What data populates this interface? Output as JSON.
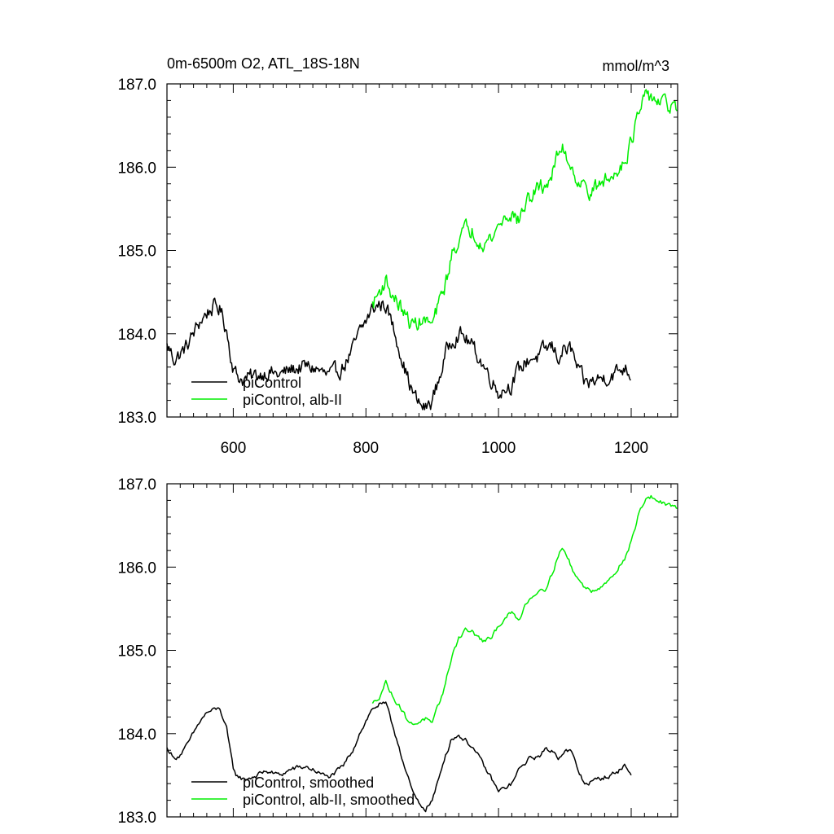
{
  "chart_data": [
    {
      "type": "line",
      "header_left": "0m-6500m O2, ATL_18S-18N",
      "header_right": "mmol/m^3",
      "xlabel": "",
      "ylabel": "",
      "xlim": [
        500,
        1270
      ],
      "ylim": [
        183.0,
        187.0
      ],
      "xticks": [
        600,
        800,
        1000,
        1200
      ],
      "yticks": [
        183.0,
        184.0,
        185.0,
        186.0,
        187.0
      ],
      "yticklabels": [
        "183.0",
        "184.0",
        "185.0",
        "186.0",
        "187.0"
      ],
      "show_xticklabels": true,
      "legend_position": "bottom-left",
      "grid": false,
      "series": [
        {
          "name": "piControl",
          "color": "#000000",
          "noise": 0.08,
          "points": [
            [
              500,
              183.85
            ],
            [
              505,
              183.8
            ],
            [
              510,
              183.7
            ],
            [
              520,
              183.75
            ],
            [
              530,
              183.85
            ],
            [
              540,
              184.0
            ],
            [
              550,
              184.15
            ],
            [
              560,
              184.25
            ],
            [
              570,
              184.32
            ],
            [
              580,
              184.3
            ],
            [
              590,
              184.05
            ],
            [
              595,
              183.8
            ],
            [
              600,
              183.6
            ],
            [
              605,
              183.5
            ],
            [
              615,
              183.45
            ],
            [
              630,
              183.48
            ],
            [
              650,
              183.55
            ],
            [
              670,
              183.5
            ],
            [
              690,
              183.58
            ],
            [
              710,
              183.6
            ],
            [
              725,
              183.58
            ],
            [
              740,
              183.5
            ],
            [
              750,
              183.5
            ],
            [
              765,
              183.6
            ],
            [
              780,
              183.8
            ],
            [
              790,
              184.0
            ],
            [
              800,
              184.15
            ],
            [
              810,
              184.3
            ],
            [
              820,
              184.35
            ],
            [
              830,
              184.35
            ],
            [
              840,
              184.1
            ],
            [
              850,
              183.85
            ],
            [
              860,
              183.55
            ],
            [
              870,
              183.3
            ],
            [
              880,
              183.15
            ],
            [
              890,
              183.1
            ],
            [
              900,
              183.2
            ],
            [
              910,
              183.45
            ],
            [
              920,
              183.75
            ],
            [
              930,
              183.95
            ],
            [
              940,
              184.0
            ],
            [
              950,
              183.95
            ],
            [
              960,
              183.85
            ],
            [
              970,
              183.72
            ],
            [
              980,
              183.58
            ],
            [
              990,
              183.45
            ],
            [
              1000,
              183.3
            ],
            [
              1010,
              183.35
            ],
            [
              1020,
              183.4
            ],
            [
              1030,
              183.55
            ],
            [
              1040,
              183.65
            ],
            [
              1050,
              183.72
            ],
            [
              1060,
              183.72
            ],
            [
              1070,
              183.8
            ],
            [
              1080,
              183.85
            ],
            [
              1090,
              183.72
            ],
            [
              1100,
              183.82
            ],
            [
              1110,
              183.8
            ],
            [
              1120,
              183.55
            ],
            [
              1130,
              183.4
            ],
            [
              1140,
              183.42
            ],
            [
              1150,
              183.45
            ],
            [
              1160,
              183.48
            ],
            [
              1170,
              183.5
            ],
            [
              1180,
              183.55
            ],
            [
              1190,
              183.6
            ],
            [
              1200,
              183.52
            ]
          ]
        },
        {
          "name": "piControl, alb-II",
          "color": "#00ee00",
          "noise": 0.08,
          "points": [
            [
              810,
              184.35
            ],
            [
              820,
              184.5
            ],
            [
              830,
              184.65
            ],
            [
              840,
              184.45
            ],
            [
              850,
              184.35
            ],
            [
              860,
              184.2
            ],
            [
              870,
              184.1
            ],
            [
              880,
              184.15
            ],
            [
              890,
              184.15
            ],
            [
              900,
              184.1
            ],
            [
              910,
              184.35
            ],
            [
              920,
              184.6
            ],
            [
              930,
              184.95
            ],
            [
              940,
              185.15
            ],
            [
              950,
              185.25
            ],
            [
              960,
              185.25
            ],
            [
              970,
              185.15
            ],
            [
              980,
              185.1
            ],
            [
              990,
              185.15
            ],
            [
              1000,
              185.3
            ],
            [
              1010,
              185.4
            ],
            [
              1020,
              185.45
            ],
            [
              1030,
              185.35
            ],
            [
              1040,
              185.55
            ],
            [
              1050,
              185.65
            ],
            [
              1060,
              185.75
            ],
            [
              1070,
              185.78
            ],
            [
              1080,
              185.9
            ],
            [
              1090,
              186.15
            ],
            [
              1095,
              186.25
            ],
            [
              1100,
              186.2
            ],
            [
              1110,
              186.0
            ],
            [
              1120,
              185.85
            ],
            [
              1130,
              185.75
            ],
            [
              1140,
              185.72
            ],
            [
              1150,
              185.75
            ],
            [
              1160,
              185.85
            ],
            [
              1170,
              185.85
            ],
            [
              1180,
              186.0
            ],
            [
              1190,
              186.1
            ],
            [
              1200,
              186.3
            ],
            [
              1210,
              186.6
            ],
            [
              1220,
              186.8
            ],
            [
              1230,
              186.85
            ],
            [
              1240,
              186.8
            ],
            [
              1250,
              186.75
            ],
            [
              1260,
              186.72
            ],
            [
              1270,
              186.7
            ]
          ]
        }
      ]
    },
    {
      "type": "line",
      "header_left": "",
      "header_right": "",
      "xlabel": "",
      "ylabel": "",
      "xlim": [
        500,
        1270
      ],
      "ylim": [
        183.0,
        187.0
      ],
      "xticks": [
        600,
        800,
        1000,
        1200
      ],
      "yticks": [
        183.0,
        184.0,
        185.0,
        186.0,
        187.0
      ],
      "yticklabels": [
        "183.0",
        "184.0",
        "185.0",
        "186.0",
        "187.0"
      ],
      "show_xticklabels": false,
      "legend_position": "bottom-left",
      "grid": false,
      "series": [
        {
          "name": "piControl, smoothed",
          "color": "#000000",
          "noise": 0.025,
          "points": [
            [
              500,
              183.82
            ],
            [
              505,
              183.78
            ],
            [
              510,
              183.7
            ],
            [
              520,
              183.75
            ],
            [
              530,
              183.85
            ],
            [
              540,
              184.0
            ],
            [
              550,
              184.15
            ],
            [
              560,
              184.25
            ],
            [
              570,
              184.28
            ],
            [
              580,
              184.3
            ],
            [
              590,
              184.05
            ],
            [
              595,
              183.8
            ],
            [
              600,
              183.58
            ],
            [
              605,
              183.5
            ],
            [
              615,
              183.45
            ],
            [
              630,
              183.48
            ],
            [
              650,
              183.55
            ],
            [
              670,
              183.5
            ],
            [
              690,
              183.58
            ],
            [
              710,
              183.6
            ],
            [
              725,
              183.55
            ],
            [
              740,
              183.48
            ],
            [
              750,
              183.5
            ],
            [
              765,
              183.6
            ],
            [
              780,
              183.8
            ],
            [
              790,
              184.0
            ],
            [
              800,
              184.15
            ],
            [
              810,
              184.3
            ],
            [
              820,
              184.35
            ],
            [
              830,
              184.35
            ],
            [
              840,
              184.1
            ],
            [
              850,
              183.85
            ],
            [
              860,
              183.55
            ],
            [
              870,
              183.3
            ],
            [
              880,
              183.15
            ],
            [
              890,
              183.1
            ],
            [
              900,
              183.2
            ],
            [
              910,
              183.45
            ],
            [
              920,
              183.75
            ],
            [
              930,
              183.95
            ],
            [
              940,
              183.98
            ],
            [
              950,
              183.92
            ],
            [
              960,
              183.85
            ],
            [
              970,
              183.72
            ],
            [
              980,
              183.58
            ],
            [
              990,
              183.45
            ],
            [
              1000,
              183.3
            ],
            [
              1010,
              183.35
            ],
            [
              1020,
              183.4
            ],
            [
              1030,
              183.55
            ],
            [
              1040,
              183.65
            ],
            [
              1050,
              183.72
            ],
            [
              1060,
              183.72
            ],
            [
              1070,
              183.8
            ],
            [
              1080,
              183.8
            ],
            [
              1090,
              183.72
            ],
            [
              1100,
              183.8
            ],
            [
              1110,
              183.78
            ],
            [
              1120,
              183.55
            ],
            [
              1130,
              183.4
            ],
            [
              1140,
              183.42
            ],
            [
              1150,
              183.45
            ],
            [
              1160,
              183.48
            ],
            [
              1170,
              183.5
            ],
            [
              1180,
              183.55
            ],
            [
              1190,
              183.62
            ],
            [
              1200,
              183.5
            ]
          ]
        },
        {
          "name": "piControl, alb-II, smoothed",
          "color": "#00ee00",
          "noise": 0.025,
          "points": [
            [
              810,
              184.35
            ],
            [
              820,
              184.45
            ],
            [
              830,
              184.62
            ],
            [
              840,
              184.45
            ],
            [
              850,
              184.35
            ],
            [
              860,
              184.2
            ],
            [
              870,
              184.1
            ],
            [
              880,
              184.15
            ],
            [
              890,
              184.18
            ],
            [
              900,
              184.1
            ],
            [
              910,
              184.35
            ],
            [
              920,
              184.6
            ],
            [
              930,
              184.95
            ],
            [
              940,
              185.15
            ],
            [
              950,
              185.25
            ],
            [
              960,
              185.22
            ],
            [
              970,
              185.15
            ],
            [
              980,
              185.1
            ],
            [
              990,
              185.15
            ],
            [
              1000,
              185.3
            ],
            [
              1010,
              185.4
            ],
            [
              1020,
              185.45
            ],
            [
              1030,
              185.35
            ],
            [
              1040,
              185.55
            ],
            [
              1050,
              185.65
            ],
            [
              1060,
              185.72
            ],
            [
              1070,
              185.75
            ],
            [
              1080,
              185.9
            ],
            [
              1090,
              186.15
            ],
            [
              1095,
              186.22
            ],
            [
              1100,
              186.18
            ],
            [
              1110,
              186.0
            ],
            [
              1120,
              185.85
            ],
            [
              1130,
              185.75
            ],
            [
              1140,
              185.72
            ],
            [
              1150,
              185.75
            ],
            [
              1160,
              185.82
            ],
            [
              1170,
              185.85
            ],
            [
              1180,
              186.0
            ],
            [
              1190,
              186.1
            ],
            [
              1200,
              186.3
            ],
            [
              1210,
              186.6
            ],
            [
              1220,
              186.8
            ],
            [
              1230,
              186.85
            ],
            [
              1240,
              186.8
            ],
            [
              1250,
              186.75
            ],
            [
              1260,
              186.72
            ],
            [
              1270,
              186.7
            ]
          ]
        }
      ]
    }
  ]
}
